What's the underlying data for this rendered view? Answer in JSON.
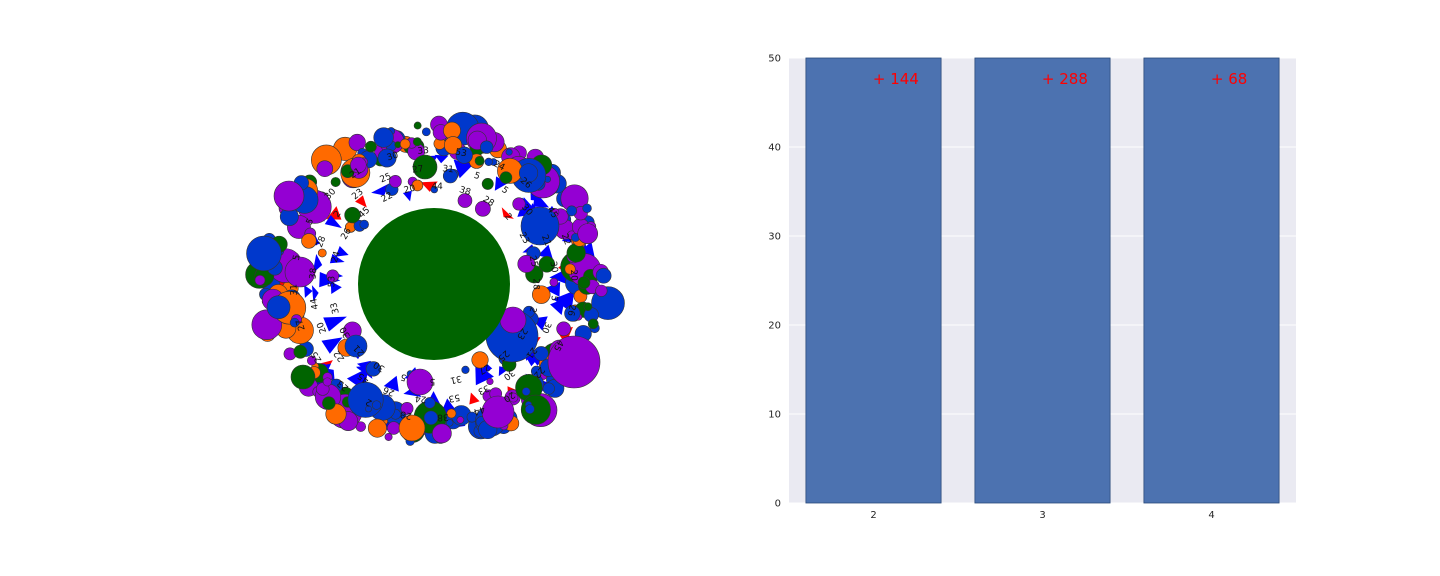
{
  "colors": {
    "background": "#ffffff",
    "axes_face": "#eaeaf2",
    "grid": "#ffffff",
    "bar_fill": "#4c72b0",
    "bar_edge": "#2a4a7a",
    "annotation": "#ff0000",
    "node_purple": "#9400d3",
    "node_blue": "#0038cc",
    "node_orange": "#ff6a00",
    "node_green": "#006400",
    "edge_blue": "#0000ff",
    "edge_red": "#ff0000"
  },
  "network": {
    "type": "circular-packing network graph",
    "center_node_color": "green",
    "node_colors": [
      "purple",
      "blue",
      "orange",
      "green"
    ],
    "visible_labels": [
      "28",
      "5",
      "26",
      "2",
      "30",
      "45",
      "23",
      "21",
      "22",
      "25",
      "30",
      "20",
      "27",
      "33",
      "44",
      "31",
      "53",
      "38",
      "5",
      "24"
    ]
  },
  "chart_data": {
    "type": "bar",
    "categories": [
      "2",
      "3",
      "4"
    ],
    "values": [
      50,
      50,
      50
    ],
    "annotations": [
      "+ 144",
      "+ 288",
      "+ 68"
    ],
    "ylim": [
      0,
      50
    ],
    "yticks": [
      0,
      10,
      20,
      30,
      40,
      50
    ],
    "title": "",
    "xlabel": "",
    "ylabel": "",
    "grid": true,
    "legend": "none"
  }
}
